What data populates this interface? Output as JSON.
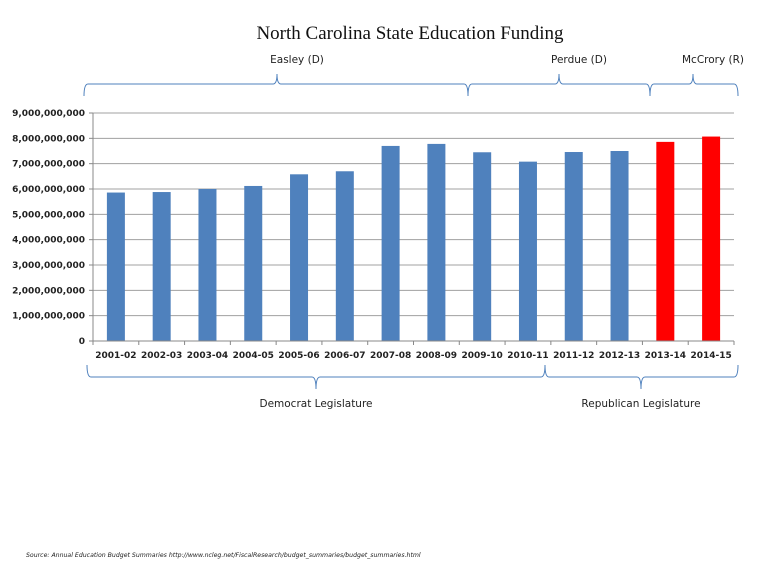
{
  "chart_data": {
    "type": "bar",
    "title": "North Carolina State Education Funding",
    "xlabel": "",
    "ylabel": "",
    "ylim": [
      0,
      9000000000
    ],
    "yticks": [
      0,
      1000000000,
      2000000000,
      3000000000,
      4000000000,
      5000000000,
      6000000000,
      7000000000,
      8000000000,
      9000000000
    ],
    "ytick_labels": [
      "0",
      "1,000,000,000",
      "2,000,000,000",
      "3,000,000,000",
      "4,000,000,000",
      "5,000,000,000",
      "6,000,000,000",
      "7,000,000,000",
      "8,000,000,000",
      "9,000,000,000"
    ],
    "grid": true,
    "legend": "none",
    "categories": [
      "2001-02",
      "2002-03",
      "2003-04",
      "2004-05",
      "2005-06",
      "2006-07",
      "2007-08",
      "2008-09",
      "2009-10",
      "2010-11",
      "2011-12",
      "2012-13",
      "2013-14",
      "2014-15"
    ],
    "values": [
      5860000000,
      5880000000,
      6000000000,
      6120000000,
      6580000000,
      6700000000,
      7700000000,
      7780000000,
      7450000000,
      7080000000,
      7460000000,
      7500000000,
      7860000000,
      8070000000
    ],
    "bar_colors": [
      "#4f81bd",
      "#4f81bd",
      "#4f81bd",
      "#4f81bd",
      "#4f81bd",
      "#4f81bd",
      "#4f81bd",
      "#4f81bd",
      "#4f81bd",
      "#4f81bd",
      "#4f81bd",
      "#4f81bd",
      "#ff0000",
      "#ff0000"
    ],
    "annotations": {
      "governors": [
        {
          "label": "Easley (D)",
          "from": "2001-02",
          "to": "2008-09"
        },
        {
          "label": "Perdue (D)",
          "from": "2009-10",
          "to": "2012-13"
        },
        {
          "label": "McCrory (R)",
          "from": "2013-14",
          "to": "2014-15"
        }
      ],
      "legislatures": [
        {
          "label": "Democrat Legislature",
          "from": "2001-02",
          "to": "2010-11"
        },
        {
          "label": "Republican Legislature",
          "from": "2011-12",
          "to": "2014-15"
        }
      ]
    }
  },
  "colors": {
    "democrat_bar": "#4f81bd",
    "republican_bar": "#ff0000",
    "bracket": "#4f81bd",
    "gridline": "#a0a0a0"
  },
  "source": "Source: Annual Education Budget Summaries  http://www.ncleg.net/FiscalResearch/budget_summaries/budget_summaries.html"
}
